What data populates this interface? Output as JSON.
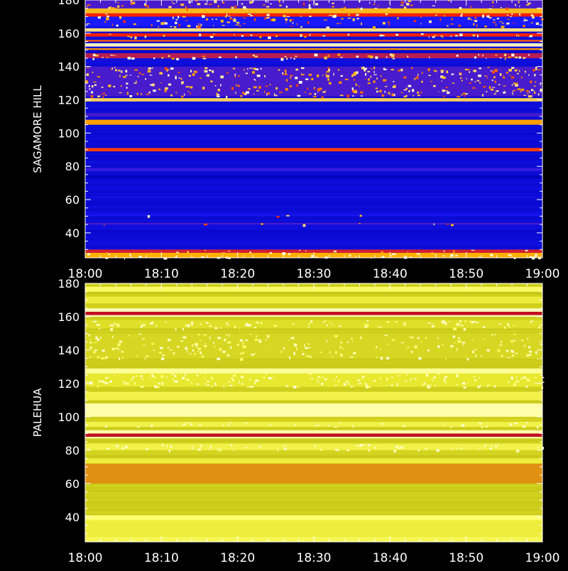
{
  "colors": {
    "background": "#000000",
    "axis": "#ffffff"
  },
  "chart_data": [
    {
      "type": "heatmap",
      "ylabel": "SAGAMORE HILL",
      "x_ticks": [
        "18:00",
        "18:10",
        "18:20",
        "18:30",
        "18:40",
        "18:50",
        "19:00"
      ],
      "y_ticks": [
        40,
        60,
        80,
        100,
        120,
        140,
        160,
        180
      ],
      "xlim": [
        "18:00",
        "19:00"
      ],
      "ylim": [
        25,
        180
      ],
      "colormap": [
        "#0000b0",
        "#1a1aff",
        "#ff2000",
        "#ffb000",
        "#ffffe0"
      ],
      "base_level": 0.12,
      "bands": [
        {
          "from": 25,
          "to": 28,
          "level": 0.75,
          "speckle": 0.35
        },
        {
          "from": 28,
          "to": 30,
          "level": 0.45,
          "speckle": 0.25
        },
        {
          "from": 45,
          "to": 46,
          "level": 0.3,
          "speckle": 0.2
        },
        {
          "from": 50,
          "to": 51,
          "level": 0.22,
          "speckle": 0.1
        },
        {
          "from": 73,
          "to": 74,
          "level": 0.02
        },
        {
          "from": 77,
          "to": 79,
          "level": 0.28
        },
        {
          "from": 89,
          "to": 91,
          "level": 0.55
        },
        {
          "from": 105,
          "to": 108,
          "level": 0.72
        },
        {
          "from": 110,
          "to": 112,
          "level": 0.3
        },
        {
          "from": 119,
          "to": 121,
          "level": 0.85
        },
        {
          "from": 122,
          "to": 140,
          "level": 0.3,
          "speckle": 0.55
        },
        {
          "from": 145,
          "to": 148,
          "level": 0.42,
          "speckle": 0.5
        },
        {
          "from": 150,
          "to": 151,
          "level": 0.7
        },
        {
          "from": 152,
          "to": 154,
          "level": 0.96
        },
        {
          "from": 155,
          "to": 156,
          "level": 0.6
        },
        {
          "from": 158,
          "to": 160,
          "level": 0.5,
          "speckle": 0.5
        },
        {
          "from": 161,
          "to": 163,
          "level": 0.9
        },
        {
          "from": 164,
          "to": 170,
          "level": 0.25,
          "speckle": 0.45
        },
        {
          "from": 170,
          "to": 172,
          "level": 0.5,
          "speckle": 0.5
        },
        {
          "from": 172,
          "to": 175,
          "level": 0.78
        },
        {
          "from": 175,
          "to": 180,
          "level": 0.3,
          "speckle": 0.45
        }
      ]
    },
    {
      "type": "heatmap",
      "ylabel": "PALEHUA",
      "x_ticks": [
        "18:00",
        "18:10",
        "18:20",
        "18:30",
        "18:40",
        "18:50",
        "19:00"
      ],
      "y_ticks": [
        40,
        60,
        80,
        100,
        120,
        140,
        160,
        180
      ],
      "xlim": [
        "18:00",
        "19:00"
      ],
      "ylim": [
        25,
        180
      ],
      "colormap": [
        "#8a8a00",
        "#bdbd10",
        "#e8e830",
        "#ffff70",
        "#ffffd0"
      ],
      "base_level": 0.35,
      "bands": [
        {
          "from": 25,
          "to": 28,
          "level": 0.65
        },
        {
          "from": 28,
          "to": 38,
          "level": 0.55
        },
        {
          "from": 38,
          "to": 41,
          "level": 0.75
        },
        {
          "from": 60,
          "to": 72,
          "level": 0.2,
          "tint": "#e09010"
        },
        {
          "from": 72,
          "to": 75,
          "level": 0.55
        },
        {
          "from": 80,
          "to": 84,
          "level": 0.6,
          "speckle": 0.4
        },
        {
          "from": 87,
          "to": 88,
          "level": 0.9
        },
        {
          "from": 88,
          "to": 90,
          "level": 0.5,
          "tint": "#c01020"
        },
        {
          "from": 90,
          "to": 92,
          "level": 0.9
        },
        {
          "from": 94,
          "to": 97,
          "level": 0.6,
          "speckle": 0.3
        },
        {
          "from": 100,
          "to": 108,
          "level": 0.9
        },
        {
          "from": 110,
          "to": 115,
          "level": 0.6
        },
        {
          "from": 118,
          "to": 126,
          "level": 0.5,
          "speckle": 0.5
        },
        {
          "from": 126,
          "to": 129,
          "level": 0.85
        },
        {
          "from": 135,
          "to": 150,
          "level": 0.4,
          "speckle": 0.35
        },
        {
          "from": 153,
          "to": 158,
          "level": 0.45,
          "speckle": 0.45
        },
        {
          "from": 160,
          "to": 161,
          "level": 0.95
        },
        {
          "from": 161,
          "to": 163,
          "level": 0.5,
          "tint": "#c01020"
        },
        {
          "from": 163,
          "to": 165,
          "level": 0.95
        },
        {
          "from": 168,
          "to": 172,
          "level": 0.55
        },
        {
          "from": 175,
          "to": 178,
          "level": 0.7
        }
      ]
    }
  ]
}
